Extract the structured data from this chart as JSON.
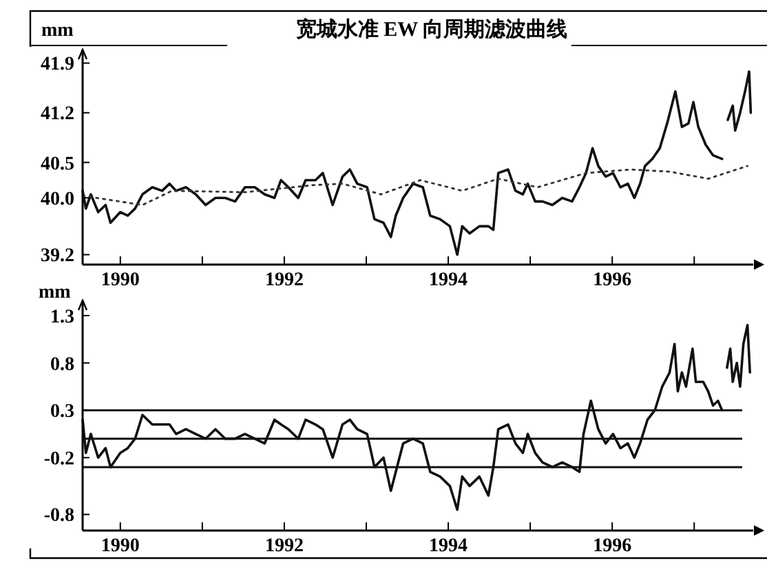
{
  "chart_data": [
    {
      "type": "line",
      "title": "宽城水准 EW 向周期滤波曲线",
      "ylabel": "mm",
      "xlim": [
        1989.54,
        1997.72
      ],
      "xticks": [
        1990,
        {
          "value": 1991,
          "label": null
        },
        1992,
        {
          "value": 1993,
          "label": null
        },
        1994,
        {
          "value": 1995,
          "label": null
        },
        1996,
        {
          "value": 1997,
          "label": null
        }
      ],
      "ylim": [
        39.06,
        42.09
      ],
      "yticks": [
        41.9,
        41.2,
        40.5,
        {
          "value": 40.0,
          "label": "40.0"
        },
        39.2
      ],
      "series": [
        {
          "color": "#111111",
          "line_style": "solid",
          "x": [
            1989.54,
            1989.58,
            1989.64,
            1989.73,
            1989.82,
            1989.88,
            1990.0,
            1990.09,
            1990.18,
            1990.27,
            1990.39,
            1990.51,
            1990.6,
            1990.68,
            1990.8,
            1990.92,
            1991.04,
            1991.16,
            1991.28,
            1991.4,
            1991.52,
            1991.64,
            1991.76,
            1991.88,
            1991.96,
            1992.05,
            1992.17,
            1992.26,
            1992.38,
            1992.47,
            1992.59,
            1992.71,
            1992.8,
            1992.89,
            1993.01,
            1993.1,
            1993.21,
            1993.3,
            1993.36,
            1993.45,
            1993.57,
            1993.69,
            1993.78,
            1993.9,
            1994.02,
            1994.11,
            1994.17,
            1994.26,
            1994.38,
            1994.49,
            1994.55,
            1994.61,
            1994.73,
            1994.82,
            1994.91,
            1994.97,
            1995.06,
            1995.15,
            1995.27,
            1995.39,
            1995.51,
            1995.6,
            1995.68,
            1995.76,
            1995.83,
            1995.92,
            1996.01,
            1996.1,
            1996.19,
            1996.27,
            1996.34,
            1996.4,
            1996.49,
            1996.58,
            1996.67,
            1996.77,
            1996.85,
            1996.93,
            1996.99,
            1997.05,
            1997.14,
            1997.23,
            1997.34,
            1997.38,
            1997.41,
            1997.47,
            1997.5,
            1997.56,
            1997.62,
            1997.67,
            1997.69
          ],
          "values": [
            40.1,
            39.85,
            40.05,
            39.8,
            39.9,
            39.65,
            39.8,
            39.75,
            39.85,
            40.05,
            40.15,
            40.1,
            40.2,
            40.1,
            40.15,
            40.05,
            39.9,
            40.0,
            40.0,
            39.95,
            40.15,
            40.15,
            40.05,
            40.0,
            40.25,
            40.15,
            40.0,
            40.25,
            40.25,
            40.35,
            39.9,
            40.3,
            40.4,
            40.2,
            40.15,
            39.7,
            39.65,
            39.45,
            39.75,
            40.0,
            40.2,
            40.15,
            39.75,
            39.7,
            39.6,
            39.2,
            39.6,
            39.5,
            39.6,
            39.6,
            39.55,
            40.35,
            40.4,
            40.1,
            40.05,
            40.2,
            39.95,
            39.95,
            39.9,
            40.0,
            39.95,
            40.15,
            40.35,
            40.7,
            40.45,
            40.3,
            40.35,
            40.15,
            40.2,
            40.0,
            40.2,
            40.45,
            40.55,
            40.7,
            41.05,
            41.5,
            41.0,
            41.05,
            41.35,
            41.0,
            40.75,
            40.6,
            40.55,
            null,
            41.1,
            41.3,
            40.95,
            41.2,
            41.5,
            41.78,
            41.2
          ]
        },
        {
          "color": "#333333",
          "line_style": "dotted",
          "x": [
            1989.54,
            1990.27,
            1990.63,
            1991.52,
            1992.35,
            1992.71,
            1993.18,
            1993.66,
            1994.17,
            1994.61,
            1995.09,
            1995.68,
            1996.22,
            1996.7,
            1997.17,
            1997.65
          ],
          "values": [
            40.03,
            39.9,
            40.1,
            40.08,
            40.18,
            40.2,
            40.05,
            40.25,
            40.1,
            40.27,
            40.15,
            40.35,
            40.4,
            40.37,
            40.27,
            40.45
          ]
        }
      ]
    },
    {
      "type": "line",
      "ylabel": "mm",
      "xlim": [
        1989.54,
        1997.72
      ],
      "xticks": [
        1990,
        {
          "value": 1991,
          "label": null
        },
        1992,
        {
          "value": 1993,
          "label": null
        },
        1994,
        {
          "value": 1995,
          "label": null
        },
        1996,
        {
          "value": 1997,
          "label": null
        }
      ],
      "ylim": [
        -0.97,
        1.46
      ],
      "yticks": [
        1.3,
        0.8,
        0.3,
        -0.2,
        -0.8
      ],
      "ref_lines": [
        {
          "axis": "y",
          "value": 0.3,
          "color": "#111111"
        },
        {
          "axis": "y",
          "value": 0,
          "color": "#111111"
        },
        {
          "axis": "y",
          "value": -0.3,
          "color": "#111111"
        }
      ],
      "series": [
        {
          "color": "#111111",
          "line_style": "solid",
          "x": [
            1989.54,
            1989.58,
            1989.64,
            1989.73,
            1989.82,
            1989.88,
            1990.0,
            1990.09,
            1990.18,
            1990.27,
            1990.39,
            1990.51,
            1990.6,
            1990.68,
            1990.8,
            1990.92,
            1991.04,
            1991.16,
            1991.28,
            1991.4,
            1991.52,
            1991.64,
            1991.76,
            1991.88,
            1991.96,
            1992.05,
            1992.17,
            1992.26,
            1992.38,
            1992.47,
            1992.59,
            1992.71,
            1992.8,
            1992.89,
            1993.01,
            1993.1,
            1993.21,
            1993.3,
            1993.36,
            1993.45,
            1993.57,
            1993.69,
            1993.78,
            1993.9,
            1994.02,
            1994.11,
            1994.17,
            1994.26,
            1994.38,
            1994.49,
            1994.55,
            1994.61,
            1994.73,
            1994.82,
            1994.91,
            1994.97,
            1995.06,
            1995.15,
            1995.27,
            1995.39,
            1995.51,
            1995.6,
            1995.65,
            1995.74,
            1995.83,
            1995.92,
            1996.01,
            1996.1,
            1996.19,
            1996.27,
            1996.34,
            1996.43,
            1996.52,
            1996.61,
            1996.7,
            1996.76,
            1996.8,
            1996.85,
            1996.9,
            1996.98,
            1997.02,
            1997.11,
            1997.17,
            1997.23,
            1997.29,
            1997.34,
            1997.37,
            1997.4,
            1997.44,
            1997.47,
            1997.52,
            1997.56,
            1997.6,
            1997.65,
            1997.68
          ],
          "values": [
            0.2,
            -0.15,
            0.05,
            -0.2,
            -0.1,
            -0.3,
            -0.15,
            -0.1,
            0.0,
            0.25,
            0.15,
            0.15,
            0.15,
            0.05,
            0.1,
            0.05,
            0.0,
            0.1,
            0.0,
            0.0,
            0.05,
            0.0,
            -0.05,
            0.2,
            0.15,
            0.1,
            0.0,
            0.2,
            0.15,
            0.1,
            -0.2,
            0.15,
            0.2,
            0.1,
            0.05,
            -0.3,
            -0.2,
            -0.55,
            -0.35,
            -0.05,
            0.0,
            -0.05,
            -0.35,
            -0.4,
            -0.5,
            -0.75,
            -0.4,
            -0.5,
            -0.4,
            -0.6,
            -0.3,
            0.1,
            0.15,
            -0.05,
            -0.15,
            0.05,
            -0.15,
            -0.25,
            -0.3,
            -0.25,
            -0.3,
            -0.35,
            0.05,
            0.4,
            0.1,
            -0.05,
            0.05,
            -0.1,
            -0.05,
            -0.2,
            -0.05,
            0.2,
            0.3,
            0.55,
            0.7,
            1.0,
            0.5,
            0.7,
            0.55,
            0.95,
            0.6,
            0.6,
            0.5,
            0.35,
            0.4,
            0.3,
            null,
            0.75,
            0.95,
            0.6,
            0.8,
            0.55,
            1.0,
            1.2,
            0.7
          ]
        }
      ]
    }
  ]
}
